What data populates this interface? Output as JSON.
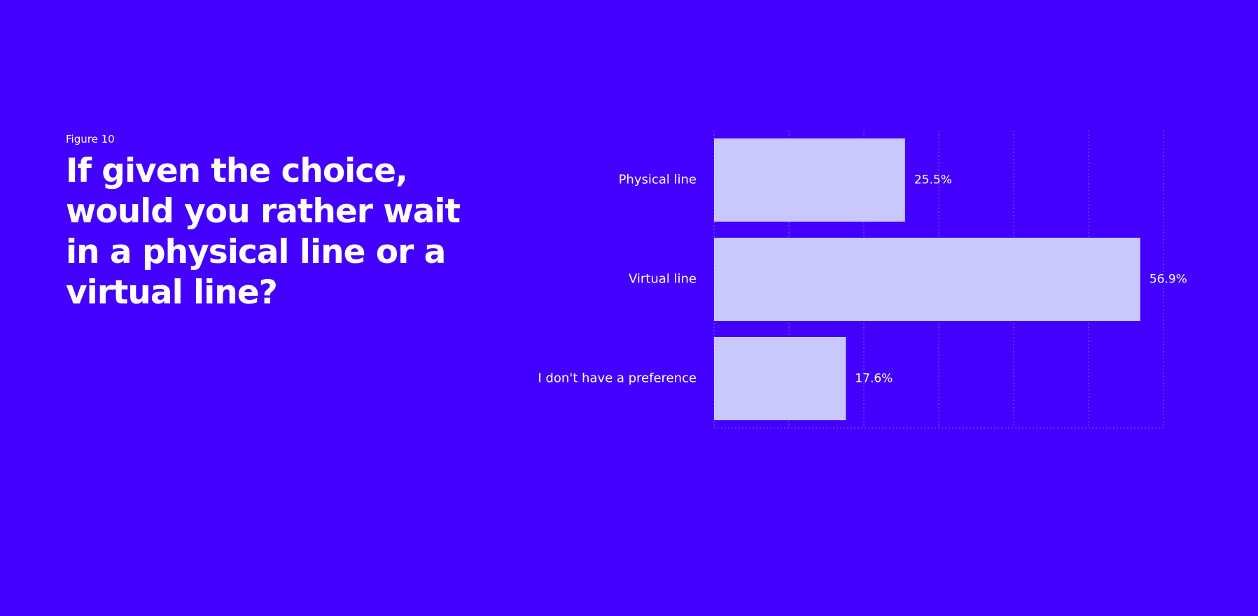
{
  "figure_label": "Figure 10",
  "title": "If given the choice, would you rather wait in a physical line or a virtual line?",
  "colors": {
    "background": "#4400ff",
    "bar": "#c8c8ff",
    "text": "#ffffff",
    "grid": "#7a5cff"
  },
  "chart_data": {
    "type": "bar",
    "orientation": "horizontal",
    "categories": [
      "Physical line",
      "Virtual line",
      "I don't have a preference"
    ],
    "values": [
      25.5,
      56.9,
      17.6
    ],
    "value_labels": [
      "25.5%",
      "56.9%",
      "17.6%"
    ],
    "xlim": [
      0,
      60
    ],
    "grid": true,
    "legend": "none"
  }
}
